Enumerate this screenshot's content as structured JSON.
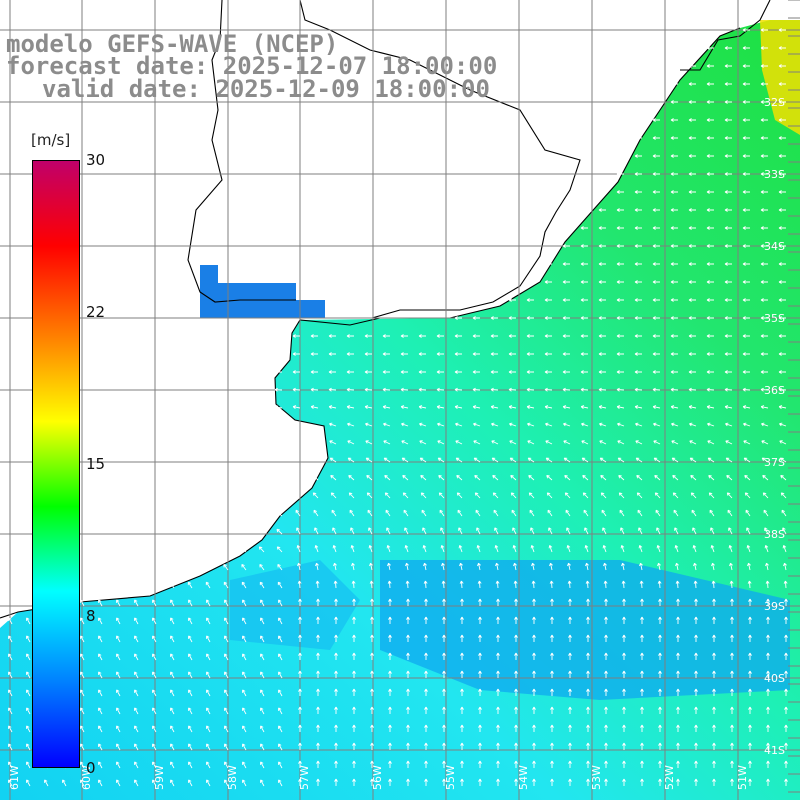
{
  "title": {
    "model": "modelo GEFS-WAVE (NCEP)",
    "forecast": "forecast date: 2025-12-07 18:00:00",
    "valid": "valid date: 2025-12-09 18:00:00"
  },
  "colorbar": {
    "unit": "[m/s]",
    "ticks": [
      "30",
      "22",
      "15",
      "8",
      "0"
    ],
    "colors": [
      "#0000ff",
      "#0080ff",
      "#00ffff",
      "#00ff00",
      "#ffff00",
      "#ff8000",
      "#ff0000",
      "#c0006a"
    ]
  },
  "map": {
    "lat_labels": [
      "32S",
      "33S",
      "34S",
      "35S",
      "36S",
      "37S",
      "38S",
      "39S",
      "40S",
      "41S"
    ],
    "lon_labels": [
      "61W",
      "60W",
      "59W",
      "58W",
      "57W",
      "56W",
      "55W",
      "54W",
      "53W",
      "52W",
      "51W"
    ],
    "land_color": "#ffffff",
    "grid_color": "#7f7f7f",
    "coast_color": "#000000"
  }
}
